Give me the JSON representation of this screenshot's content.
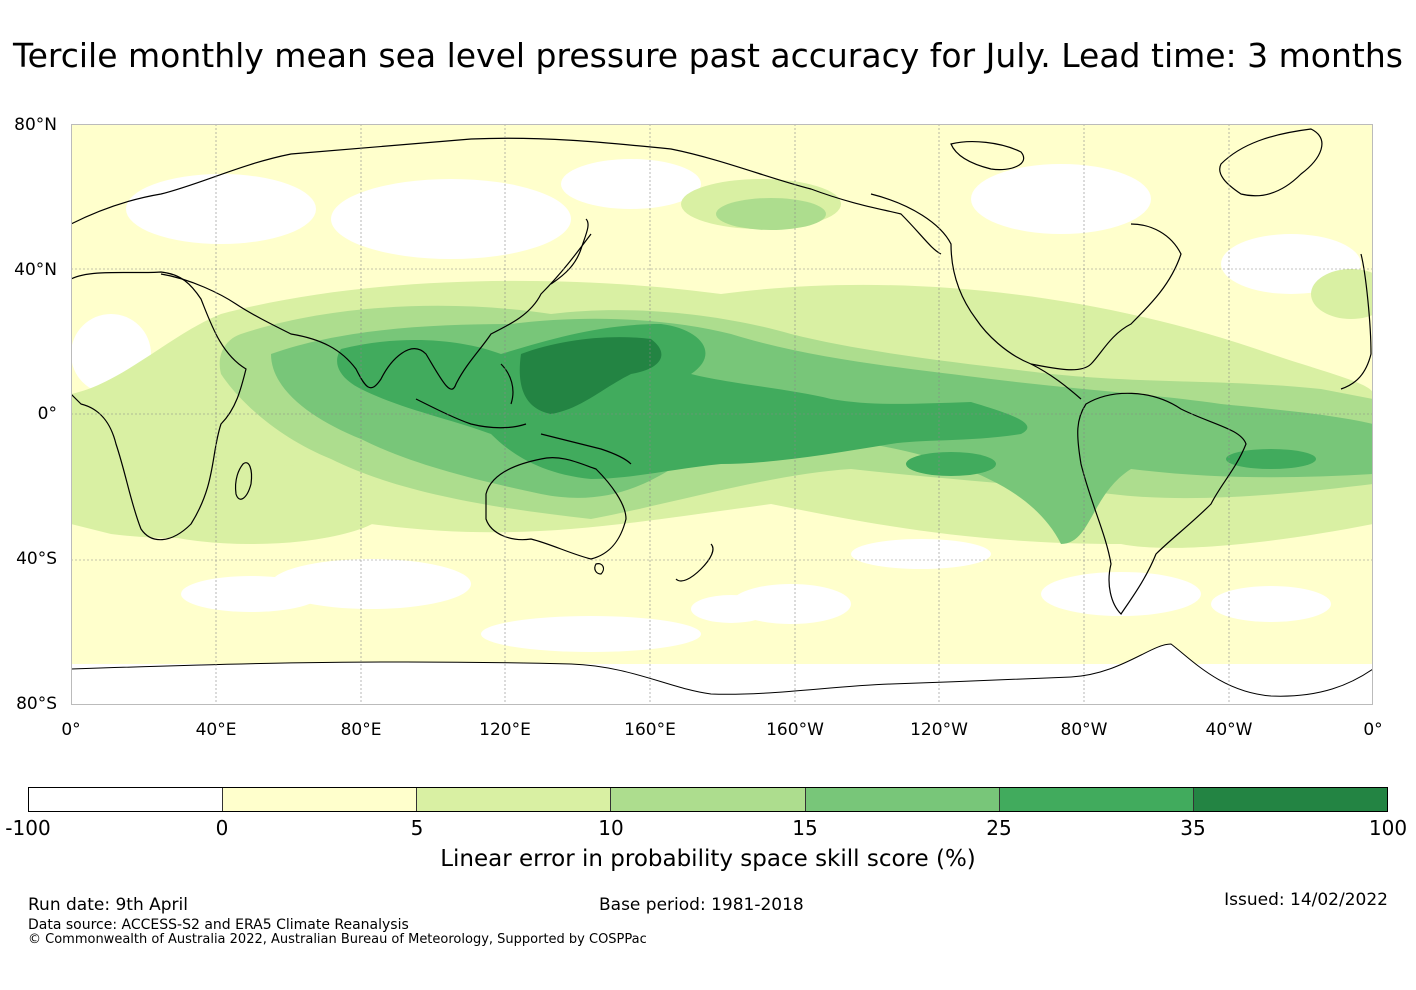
{
  "title": "Tercile monthly mean sea level pressure past accuracy for July. Lead time: 3 months",
  "map": {
    "lat_labels": [
      "80°N",
      "40°N",
      "0°",
      "40°S",
      "80°S"
    ],
    "lon_labels": [
      "0°",
      "40°E",
      "80°E",
      "120°E",
      "160°E",
      "160°W",
      "120°W",
      "80°W",
      "40°W",
      "0°"
    ],
    "land_color": "#ffffff",
    "coast_color": "#000000"
  },
  "legend": {
    "ticks": [
      "-100",
      "0",
      "5",
      "10",
      "15",
      "25",
      "35",
      "100"
    ],
    "colors": [
      "#ffffff",
      "#ffffcc",
      "#d9f0a3",
      "#addd8e",
      "#78c679",
      "#41ab5d",
      "#238443"
    ],
    "label": "Linear error in probability space skill score (%)"
  },
  "footer": {
    "run_date": "Run date: 9th April",
    "base_period": "Base period: 1981-2018",
    "issued": "Issued: 14/02/2022",
    "data_source": "Data source: ACCESS-S2 and ERA5 Climate Reanalysis",
    "copyright": "© Commonwealth of Australia 2022, Australian Bureau of Meteorology, Supported by COSPPac"
  }
}
